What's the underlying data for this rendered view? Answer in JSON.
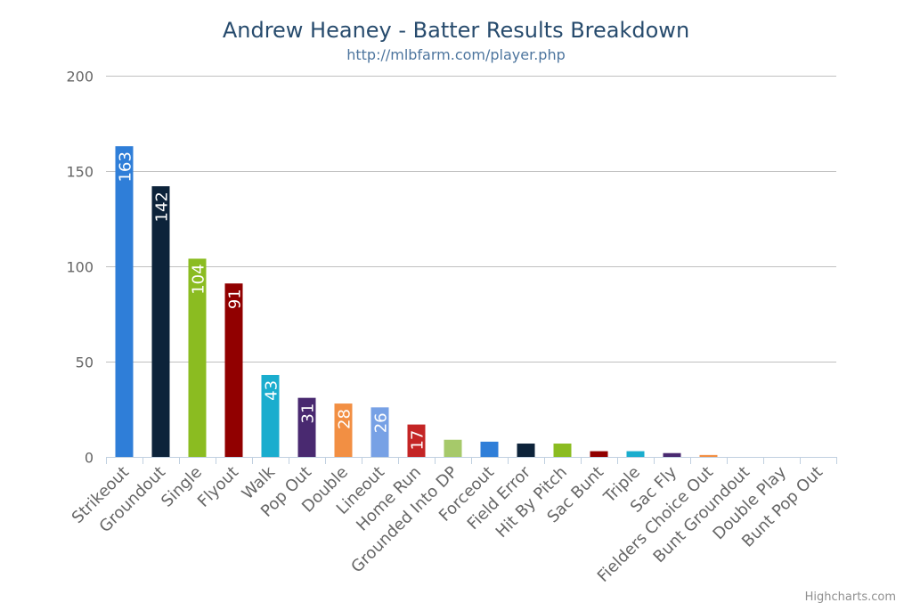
{
  "chart_data": {
    "type": "bar",
    "title": "Andrew Heaney - Batter Results Breakdown",
    "subtitle": "http://mlbfarm.com/player.php",
    "categories": [
      "Strikeout",
      "Groundout",
      "Single",
      "Flyout",
      "Walk",
      "Pop Out",
      "Double",
      "Lineout",
      "Home Run",
      "Grounded Into DP",
      "Forceout",
      "Field Error",
      "Hit By Pitch",
      "Sac Bunt",
      "Triple",
      "Sac Fly",
      "Fielders Choice Out",
      "Bunt Groundout",
      "Double Play",
      "Bunt Pop Out"
    ],
    "values": [
      163,
      142,
      104,
      91,
      43,
      31,
      28,
      26,
      17,
      9,
      8,
      7,
      7,
      3,
      3,
      2,
      1,
      0,
      0,
      0
    ],
    "data_labels": [
      "163",
      "142",
      "104",
      "91",
      "43",
      "31",
      "28",
      "26",
      "17",
      "",
      "",
      "",
      "",
      "",
      "",
      "",
      "",
      "",
      "",
      ""
    ],
    "colors": [
      "#2f7ed8",
      "#0d233a",
      "#8bbc21",
      "#910000",
      "#1aadce",
      "#492970",
      "#f28f43",
      "#77a1e5",
      "#c42525",
      "#a6c96a",
      "#2f7ed8",
      "#0d233a",
      "#8bbc21",
      "#910000",
      "#1aadce",
      "#492970",
      "#f28f43",
      "#77a1e5",
      "#c42525",
      "#a6c96a"
    ],
    "yticks": [
      "0",
      "50",
      "100",
      "150",
      "200"
    ],
    "ylim": [
      0,
      200
    ],
    "xlabel": "",
    "ylabel": "",
    "grid": true,
    "legend": "none"
  },
  "credits": "Highcharts.com"
}
